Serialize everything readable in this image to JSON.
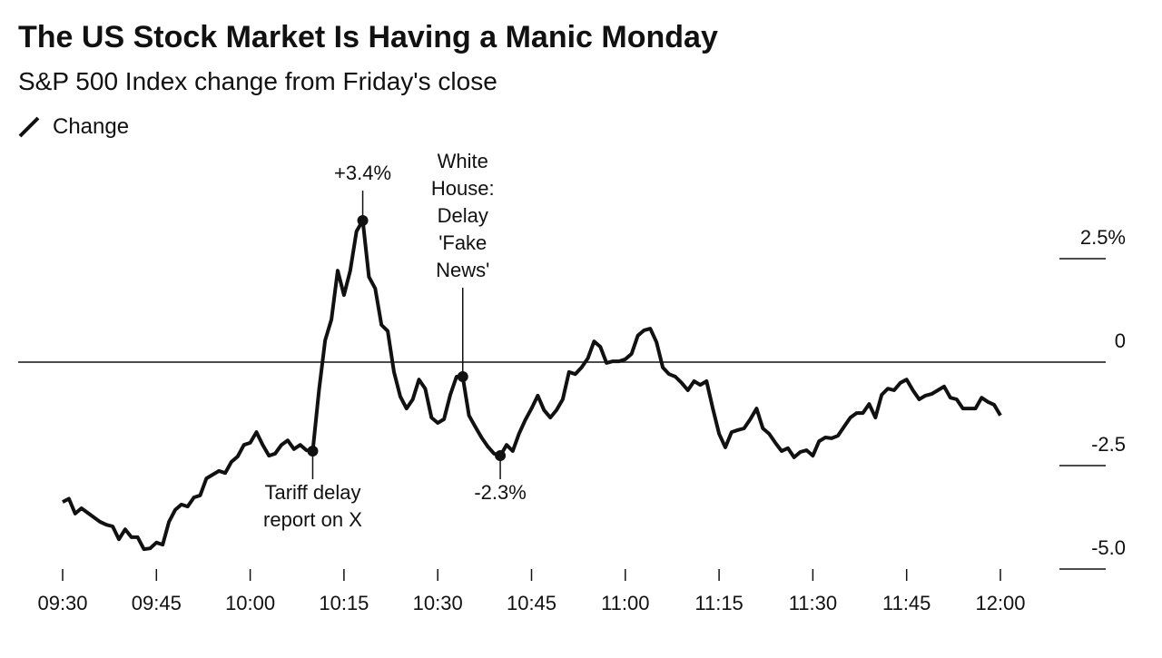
{
  "chart_data": {
    "type": "line",
    "title": "The US Stock Market Is Having a Manic Monday",
    "subtitle": "S&P 500 Index change from Friday's close",
    "xlim": [
      "09:30",
      "12:00"
    ],
    "xticks": [
      "09:30",
      "09:45",
      "10:00",
      "10:15",
      "10:30",
      "10:45",
      "11:00",
      "11:15",
      "11:30",
      "11:45",
      "12:00"
    ],
    "ylim": [
      -5,
      5
    ],
    "yticks": [
      {
        "value": 2.5,
        "label": "2.5%"
      },
      0,
      -2.5,
      {
        "value": -5,
        "label": "-5.0"
      }
    ],
    "x": [
      "09:30",
      "09:31",
      "09:32",
      "09:33",
      "09:35",
      "09:36",
      "09:37",
      "09:38",
      "09:39",
      "09:40",
      "09:41",
      "09:42",
      "09:43",
      "09:44",
      "09:45",
      "09:46",
      "09:47",
      "09:48",
      "09:49",
      "09:50",
      "09:51",
      "09:52",
      "09:53",
      "09:54",
      "09:55",
      "09:56",
      "09:57",
      "09:58",
      "09:59",
      "10:00",
      "10:01",
      "10:02",
      "10:03",
      "10:04",
      "10:05",
      "10:06",
      "10:07",
      "10:08",
      "10:09",
      "10:10",
      "10:11",
      "10:12",
      "10:13",
      "10:14",
      "10:15",
      "10:16",
      "10:17",
      "10:18",
      "10:19",
      "10:20",
      "10:21",
      "10:22",
      "10:23",
      "10:24",
      "10:25",
      "10:26",
      "10:27",
      "10:28",
      "10:29",
      "10:30",
      "10:31",
      "10:32",
      "10:33",
      "10:34",
      "10:35",
      "10:36",
      "10:37",
      "10:38",
      "10:39",
      "10:40",
      "10:41",
      "10:42",
      "10:43",
      "10:44",
      "10:45",
      "10:46",
      "10:47",
      "10:48",
      "10:49",
      "10:50",
      "10:51",
      "10:52",
      "10:53",
      "10:54",
      "10:55",
      "10:56",
      "10:57",
      "10:58",
      "10:59",
      "11:00",
      "11:01",
      "11:02",
      "11:03",
      "11:04",
      "11:05",
      "11:06",
      "11:07",
      "11:08",
      "11:09",
      "11:10",
      "11:11",
      "11:12",
      "11:13",
      "11:14",
      "11:15",
      "11:16",
      "11:17",
      "11:18",
      "11:19",
      "11:20",
      "11:21",
      "11:22",
      "11:23",
      "11:24",
      "11:25",
      "11:26",
      "11:27",
      "11:28",
      "11:29",
      "11:30",
      "11:31",
      "11:32",
      "11:33",
      "11:34",
      "11:35",
      "11:36",
      "11:37",
      "11:38",
      "11:39",
      "11:40",
      "11:41",
      "11:42",
      "11:43",
      "11:44",
      "11:45",
      "11:46",
      "11:47",
      "11:48",
      "11:49",
      "11:50",
      "11:51",
      "11:52",
      "11:53",
      "11:54",
      "11:55",
      "11:56",
      "11:57",
      "11:58",
      "11:59",
      "12:00"
    ],
    "series": [
      {
        "name": "Change",
        "color": "#111111",
        "values": [
          -3.38,
          -3.3,
          -3.66,
          -3.53,
          -3.75,
          -3.86,
          -3.93,
          -3.97,
          -4.28,
          -4.04,
          -4.23,
          -4.23,
          -4.52,
          -4.5,
          -4.36,
          -4.41,
          -3.86,
          -3.57,
          -3.44,
          -3.49,
          -3.27,
          -3.22,
          -2.81,
          -2.72,
          -2.63,
          -2.68,
          -2.41,
          -2.28,
          -2.0,
          -1.95,
          -1.69,
          -2.0,
          -2.26,
          -2.21,
          -2.0,
          -1.89,
          -2.1,
          -2.0,
          -2.13,
          -2.15,
          -0.68,
          0.53,
          1.03,
          2.21,
          1.62,
          2.21,
          3.16,
          3.42,
          2.06,
          1.78,
          0.9,
          0.75,
          -0.24,
          -0.83,
          -1.12,
          -0.9,
          -0.42,
          -0.64,
          -1.34,
          -1.47,
          -1.38,
          -0.79,
          -0.35,
          -0.35,
          -1.29,
          -1.56,
          -1.82,
          -2.04,
          -2.21,
          -2.26,
          -2.0,
          -2.15,
          -1.73,
          -1.4,
          -1.12,
          -0.81,
          -1.16,
          -1.34,
          -1.16,
          -0.9,
          -0.24,
          -0.29,
          -0.13,
          0.09,
          0.5,
          0.37,
          -0.02,
          0.02,
          0.02,
          0.07,
          0.2,
          0.64,
          0.77,
          0.81,
          0.48,
          -0.13,
          -0.29,
          -0.35,
          -0.5,
          -0.68,
          -0.46,
          -0.55,
          -0.46,
          -1.12,
          -1.73,
          -2.06,
          -1.69,
          -1.64,
          -1.6,
          -1.38,
          -1.12,
          -1.6,
          -1.73,
          -1.95,
          -2.15,
          -2.08,
          -2.3,
          -2.17,
          -2.13,
          -2.26,
          -1.91,
          -1.82,
          -1.84,
          -1.78,
          -1.56,
          -1.34,
          -1.23,
          -1.23,
          -1.01,
          -1.34,
          -0.79,
          -0.64,
          -0.68,
          -0.5,
          -0.42,
          -0.68,
          -0.9,
          -0.81,
          -0.77,
          -0.68,
          -0.59,
          -0.86,
          -0.9,
          -1.12,
          -1.12,
          -1.12,
          -0.86,
          -0.96,
          -1.03,
          -1.29
        ]
      }
    ],
    "annotations": [
      {
        "x": "10:18",
        "y": 3.42,
        "label": "+3.4%",
        "side": "above"
      },
      {
        "x": "10:34",
        "y": -0.35,
        "lines": [
          "White",
          "House:",
          "Delay",
          "'Fake",
          "News'"
        ],
        "side": "above"
      },
      {
        "x": "10:10",
        "y": -2.15,
        "lines": [
          "Tariff delay",
          "report on X"
        ],
        "side": "below"
      },
      {
        "x": "10:40",
        "y": -2.26,
        "label": "-2.3%",
        "side": "below"
      }
    ]
  }
}
